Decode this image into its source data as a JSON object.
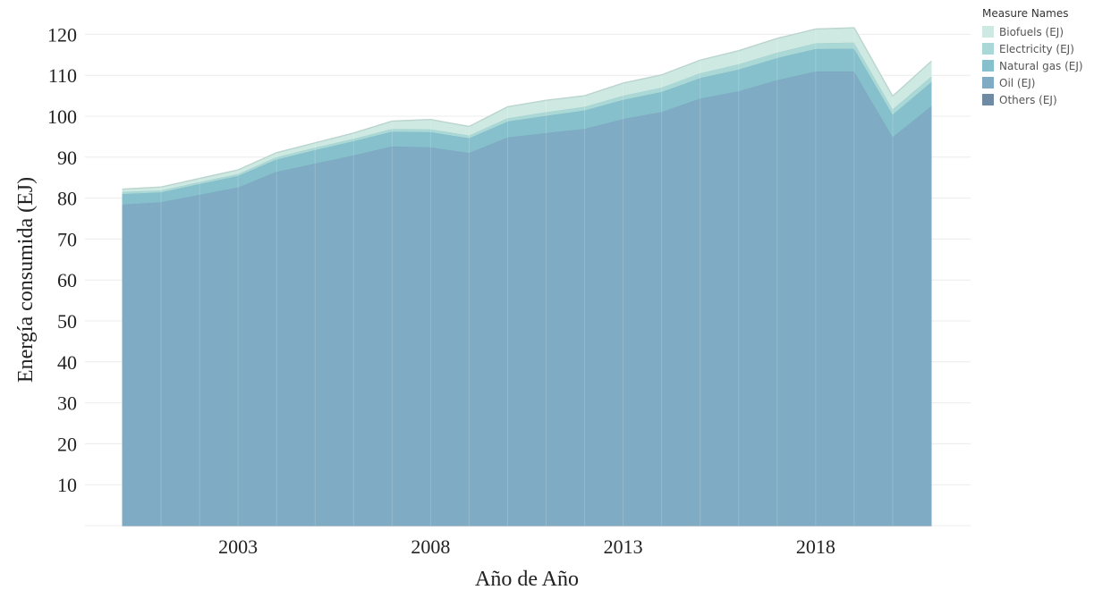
{
  "chart_data": {
    "type": "area",
    "stacked": true,
    "title": "",
    "xlabel": "Año de Año",
    "ylabel": "Energía consumida (EJ)",
    "xlim": [
      2000,
      2021
    ],
    "ylim": [
      0,
      125
    ],
    "yticks": [
      10,
      20,
      30,
      40,
      50,
      60,
      70,
      80,
      90,
      100,
      110,
      120
    ],
    "xticks": [
      2003,
      2008,
      2013,
      2018
    ],
    "grid": "horizontal",
    "legend_title": "Measure Names",
    "legend_position": "top-right",
    "x": [
      2000,
      2001,
      2002,
      2003,
      2004,
      2005,
      2006,
      2007,
      2008,
      2009,
      2010,
      2011,
      2012,
      2013,
      2014,
      2015,
      2016,
      2017,
      2018,
      2019,
      2020,
      2021
    ],
    "series": [
      {
        "name": "Others (EJ)",
        "color": "#6f8ba3",
        "values": [
          0.1,
          0.1,
          0.1,
          0.1,
          0.1,
          0.1,
          0.1,
          0.1,
          0.1,
          0.1,
          0.1,
          0.1,
          0.1,
          0.1,
          0.1,
          0.1,
          0.1,
          0.1,
          0.1,
          0.1,
          0.1,
          0.1
        ]
      },
      {
        "name": "Oil (EJ)",
        "color": "#7fabc4",
        "values": [
          78.4,
          79.0,
          80.8,
          82.6,
          86.4,
          88.4,
          90.4,
          92.6,
          92.4,
          91.0,
          94.8,
          95.9,
          96.9,
          99.3,
          101.0,
          104.3,
          106.1,
          108.8,
          110.9,
          110.9,
          94.9,
          102.4
        ]
      },
      {
        "name": "Natural gas (EJ)",
        "color": "#86c0cc",
        "values": [
          2.6,
          2.4,
          2.6,
          2.8,
          3.0,
          3.3,
          3.5,
          3.6,
          3.7,
          3.6,
          3.9,
          4.2,
          4.5,
          4.7,
          4.9,
          5.0,
          5.3,
          5.4,
          5.5,
          5.6,
          5.5,
          5.9
        ]
      },
      {
        "name": "Electricity (EJ)",
        "color": "#a9d8d6",
        "values": [
          0.5,
          0.5,
          0.5,
          0.5,
          0.6,
          0.6,
          0.6,
          0.7,
          0.7,
          0.7,
          0.8,
          0.9,
          0.9,
          1.0,
          1.1,
          1.2,
          1.3,
          1.3,
          1.4,
          1.5,
          1.3,
          1.4
        ]
      },
      {
        "name": "Biofuels (EJ)",
        "color": "#cde9e2",
        "values": [
          0.6,
          0.7,
          0.8,
          0.9,
          1.0,
          1.1,
          1.3,
          1.8,
          2.3,
          2.1,
          2.7,
          2.8,
          2.6,
          3.0,
          3.0,
          3.1,
          3.2,
          3.4,
          3.4,
          3.5,
          3.1,
          3.6
        ]
      }
    ]
  },
  "legend": {
    "title": "Measure Names",
    "items": [
      {
        "label": "Biofuels (EJ)",
        "color": "#cde9e2"
      },
      {
        "label": "Electricity (EJ)",
        "color": "#a9d8d6"
      },
      {
        "label": "Natural gas (EJ)",
        "color": "#86c0cc"
      },
      {
        "label": "Oil (EJ)",
        "color": "#7fabc4"
      },
      {
        "label": "Others (EJ)",
        "color": "#6f8ba3"
      }
    ]
  }
}
